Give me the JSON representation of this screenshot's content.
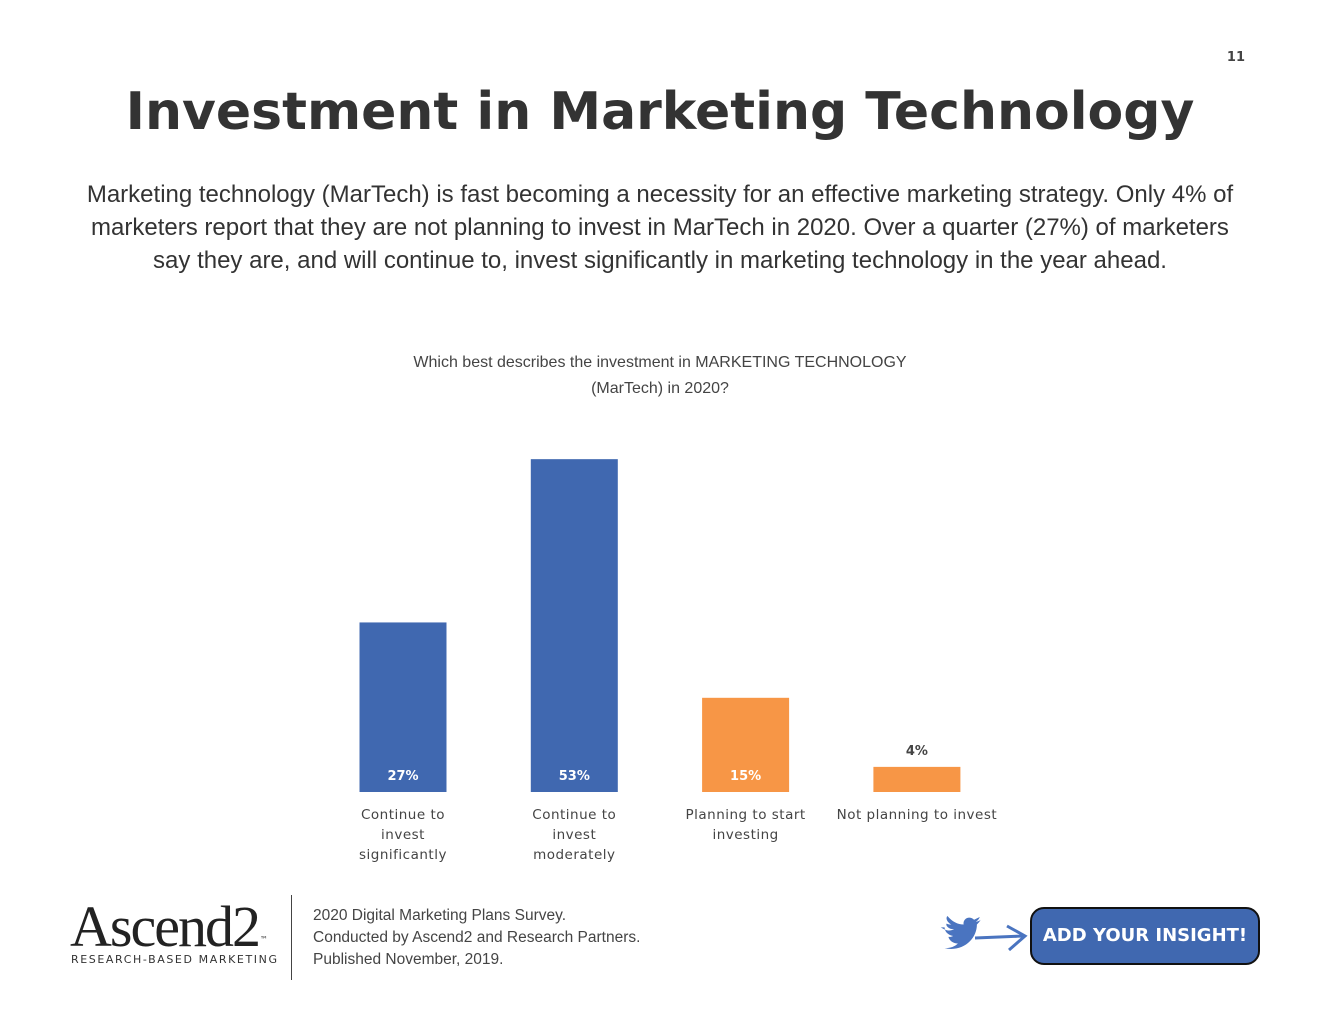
{
  "page_number": "11",
  "heading": "Investment in Marketing Technology",
  "body": "Marketing technology (MarTech) is fast becoming a necessity for an effective marketing strategy. Only 4% of marketers report that they are not planning to invest in MarTech in 2020. Over a quarter (27%) of marketers say they are, and will continue to, invest significantly in marketing technology in the year ahead.",
  "chart_data": {
    "type": "bar",
    "title": "Which best describes the investment in MARKETING TECHNOLOGY (MarTech) in 2020?",
    "categories": [
      "Continue to invest significantly",
      "Continue to invest moderately",
      "Planning to start investing",
      "Not planning to invest"
    ],
    "values": [
      27,
      53,
      15,
      4
    ],
    "value_labels": [
      "27%",
      "53%",
      "15%",
      "4%"
    ],
    "colors": [
      "#4068b0",
      "#4068b0",
      "#f79646",
      "#f79646"
    ]
  },
  "footer": {
    "logo": "Ascend2",
    "trademark": "™",
    "tagline": "RESEARCH-BASED MARKETING",
    "lines": [
      "2020 Digital Marketing Plans Survey.",
      "Conducted  by Ascend2 and Research Partners.",
      "Published November, 2019."
    ]
  },
  "button": "ADD YOUR INSIGHT!"
}
